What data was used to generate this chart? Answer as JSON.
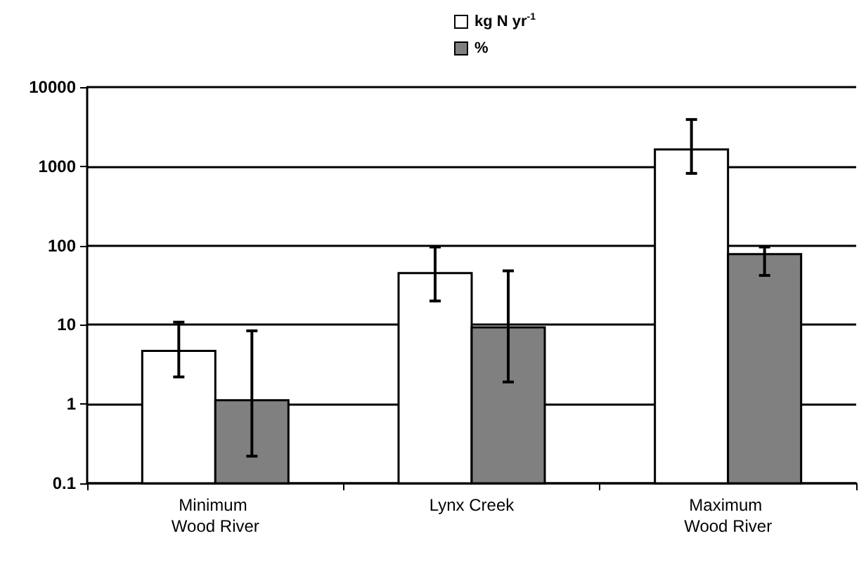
{
  "chart_data": {
    "type": "bar",
    "categories": [
      "Minimum Wood River",
      "Lynx Creek",
      "Maximum Wood River"
    ],
    "series": [
      {
        "name": "kg N yr$^{-1}$",
        "color": "#ffffff",
        "values": [
          4.7,
          45,
          1630
        ],
        "errors": [
          [
            2.2,
            10.8
          ],
          [
            20,
            96
          ],
          [
            815,
            3900
          ]
        ]
      },
      {
        "name": "%",
        "color": "#808080",
        "values": [
          1.12,
          9.3,
          78
        ],
        "errors": [
          [
            0.22,
            8.4
          ],
          [
            1.9,
            48
          ],
          [
            42,
            96
          ]
        ]
      }
    ],
    "log": "y",
    "ylim": [
      0.1,
      10000
    ],
    "yticks": [
      0.1,
      1,
      10,
      100,
      1000,
      10000
    ],
    "grid": "y",
    "legend": "top"
  }
}
